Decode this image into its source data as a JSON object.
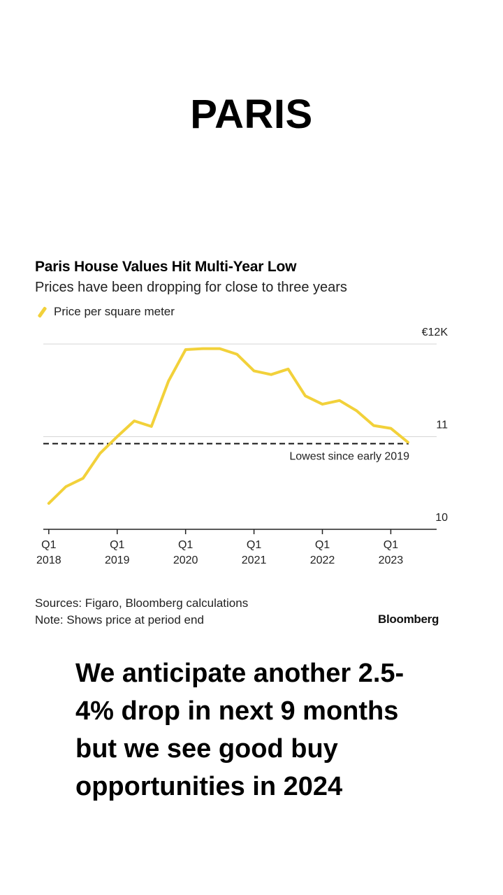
{
  "page": {
    "heading": "PARIS",
    "message": "We anticipate another 2.5-4% drop in next 9 months but we see good buy opportunities in 2024"
  },
  "chart_data": {
    "type": "line",
    "title": "Paris House Values Hit Multi-Year Low",
    "subtitle": "Prices have been dropping for close to three years",
    "legend": [
      {
        "label": "Price per square meter",
        "color": "#f2d13a"
      }
    ],
    "legend_placement": "top-left",
    "yaxis_side": "right",
    "ylim": [
      10,
      12
    ],
    "y_ticks": [
      {
        "value": 12,
        "label": "€12K"
      },
      {
        "value": 11,
        "label": "11"
      },
      {
        "value": 10,
        "label": "10"
      }
    ],
    "xlim": [
      2017.92,
      2023.67
    ],
    "x_ticks": [
      {
        "value": 2018,
        "label_top": "Q1",
        "label_bottom": "2018"
      },
      {
        "value": 2019,
        "label_top": "Q1",
        "label_bottom": "2019"
      },
      {
        "value": 2020,
        "label_top": "Q1",
        "label_bottom": "2020"
      },
      {
        "value": 2021,
        "label_top": "Q1",
        "label_bottom": "2021"
      },
      {
        "value": 2022,
        "label_top": "Q1",
        "label_bottom": "2022"
      },
      {
        "value": 2023,
        "label_top": "Q1",
        "label_bottom": "2023"
      }
    ],
    "grid": true,
    "series": [
      {
        "name": "Price per square meter",
        "color": "#f2d13a",
        "points": [
          [
            2018.0,
            10.28
          ],
          [
            2018.25,
            10.46
          ],
          [
            2018.5,
            10.55
          ],
          [
            2018.75,
            10.82
          ],
          [
            2019.0,
            11.0
          ],
          [
            2019.25,
            11.17
          ],
          [
            2019.5,
            11.11
          ],
          [
            2019.75,
            11.6
          ],
          [
            2020.0,
            11.94
          ],
          [
            2020.25,
            11.95
          ],
          [
            2020.5,
            11.95
          ],
          [
            2020.75,
            11.89
          ],
          [
            2021.0,
            11.71
          ],
          [
            2021.25,
            11.67
          ],
          [
            2021.5,
            11.73
          ],
          [
            2021.75,
            11.44
          ],
          [
            2022.0,
            11.35
          ],
          [
            2022.25,
            11.39
          ],
          [
            2022.5,
            11.28
          ],
          [
            2022.75,
            11.12
          ],
          [
            2023.0,
            11.09
          ],
          [
            2023.25,
            10.94
          ]
        ]
      }
    ],
    "reference_line": {
      "value": 10.94,
      "style": "dashed",
      "label": "Lowest since early 2019"
    }
  },
  "footer": {
    "sources": "Sources: Figaro, Bloomberg calculations",
    "note": "Note: Shows price at period end",
    "brand": "Bloomberg"
  }
}
